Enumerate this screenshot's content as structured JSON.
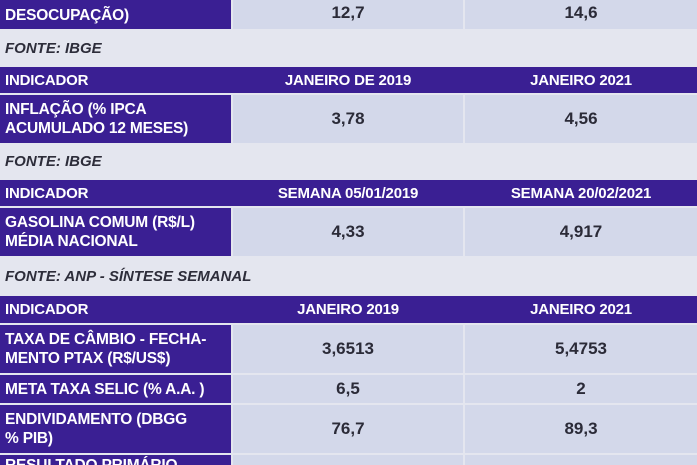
{
  "rows": {
    "r0": {
      "label": "DESOCUPAÇÃO)",
      "v1": "12,7",
      "v2": "14,6"
    },
    "src1": "FONTE: IBGE",
    "h1": {
      "indicator": "INDICADOR",
      "col1": "JANEIRO DE 2019",
      "col2": "JANEIRO 2021"
    },
    "r1": {
      "line1": "INFLAÇÃO (% IPCA",
      "line2": "ACUMULADO 12 MESES)",
      "v1": "3,78",
      "v2": "4,56"
    },
    "src2": "FONTE: IBGE",
    "h2": {
      "indicator": "INDICADOR",
      "col1": "SEMANA 05/01/2019",
      "col2": "SEMANA 20/02/2021"
    },
    "r2": {
      "line1": "GASOLINA COMUM (R$/L)",
      "line2": "MÉDIA NACIONAL",
      "v1": "4,33",
      "v2": "4,917"
    },
    "src3": "FONTE: ANP - SÍNTESE SEMANAL",
    "h3": {
      "indicator": "INDICADOR",
      "col1": "JANEIRO 2019",
      "col2": "JANEIRO 2021"
    },
    "r3": {
      "line1": "TAXA DE CÂMBIO - FECHA-",
      "line2": "MENTO PTAX (R$/US$)",
      "v1": "3,6513",
      "v2": "5,4753"
    },
    "r4": {
      "label": "META TAXA SELIC (% A.A. )",
      "v1": "6,5",
      "v2": "2"
    },
    "r5": {
      "line1": "ENDIVIDAMENTO (DBGG",
      "line2": "% PIB)",
      "v1": "76,7",
      "v2": "89,3"
    },
    "r6": {
      "label": "RESULTADO PRIMÁRIO"
    }
  }
}
